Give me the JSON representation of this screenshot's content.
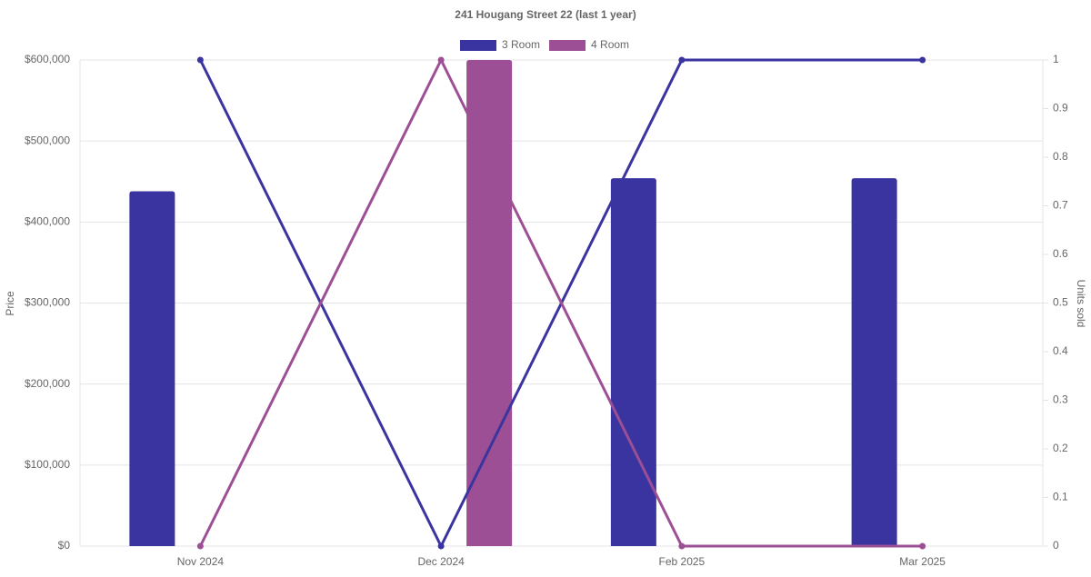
{
  "chart_data": {
    "type": "bar_line",
    "title": "241 Hougang Street 22 (last 1 year)",
    "categories": [
      "Nov 2024",
      "Dec 2024",
      "Feb 2025",
      "Mar 2025"
    ],
    "y_label": "Price",
    "y2_label": "Units sold",
    "series": [
      {
        "name": "3 Room",
        "color": "#3a34a0",
        "values": [
          438000,
          null,
          454000,
          454000
        ],
        "units_sold": [
          1,
          0,
          1,
          1
        ]
      },
      {
        "name": "4 Room",
        "color": "#9c4f94",
        "values": [
          null,
          600000,
          null,
          null
        ],
        "units_sold": [
          0,
          1,
          0,
          0
        ]
      }
    ],
    "ylim": [
      0,
      600000
    ],
    "yticks": [
      {
        "value": 0,
        "label": "$0"
      },
      {
        "value": 100000,
        "label": "$100,000"
      },
      {
        "value": 200000,
        "label": "$200,000"
      },
      {
        "value": 300000,
        "label": "$300,000"
      },
      {
        "value": 400000,
        "label": "$400,000"
      },
      {
        "value": 500000,
        "label": "$500,000"
      },
      {
        "value": 600000,
        "label": "$600,000"
      }
    ],
    "y2lim": [
      0,
      1
    ],
    "y2ticks": [
      0,
      0.1,
      0.2,
      0.3,
      0.4,
      0.5,
      0.6,
      0.7,
      0.8,
      0.9,
      1
    ],
    "grid": true
  }
}
